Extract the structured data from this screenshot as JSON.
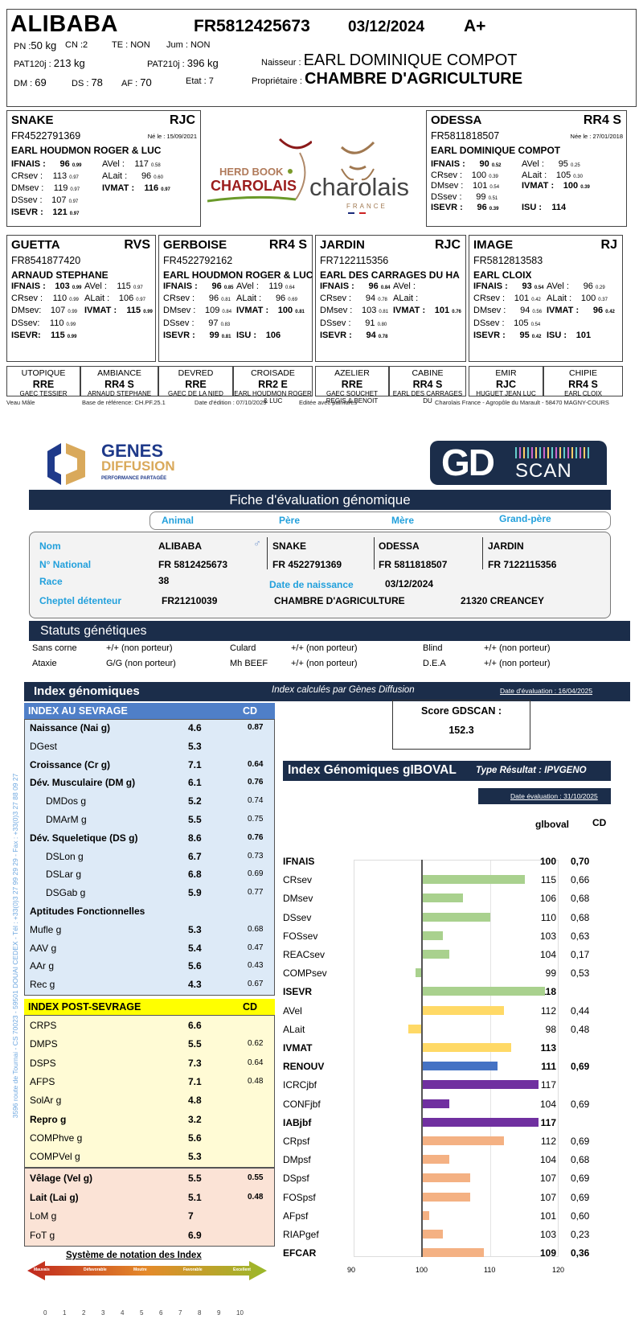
{
  "header": {
    "name": "ALIBABA",
    "national_id": "FR5812425673",
    "birth_date": "03/12/2024",
    "grade": "A+",
    "pn_label": "PN :",
    "pn_value": "50 kg",
    "cn_label": "CN :",
    "cn_value": "2",
    "te_label": "TE : ",
    "te_value": "NON",
    "jum_label": "Jum : ",
    "jum_value": "NON",
    "pat120_label": "PAT120j : ",
    "pat120_value": "213 kg",
    "pat210_label": "PAT210j : ",
    "pat210_value": "396 kg",
    "dm_label": "DM : ",
    "dm_value": "69",
    "ds_label": "DS : ",
    "ds_value": "78",
    "af_label": "AF : ",
    "af_value": "70",
    "etat_label": "Etat : ",
    "etat_value": "7",
    "naisseur_label": "Naisseur : ",
    "naisseur_value": "EARL DOMINIQUE COMPOT",
    "proprietaire_label": "Propriétaire : ",
    "proprietaire_value": "CHAMBRE D'AGRICULTURE"
  },
  "parents": {
    "father": {
      "name": "SNAKE",
      "code": "RJC",
      "id": "FR4522791369",
      "born": "Né le : 15/09/2021",
      "owner": "EARL HOUDMON ROGER & LUC",
      "left": [
        {
          "label": "IFNAIS :",
          "value": "96",
          "cd": "0.99",
          "bold": true
        },
        {
          "label": "CRsev :",
          "value": "113",
          "cd": "0.97"
        },
        {
          "label": "DMsev :",
          "value": "119",
          "cd": "0.97"
        },
        {
          "label": "DSsev :",
          "value": "107",
          "cd": "0.97"
        },
        {
          "label": "ISEVR :",
          "value": "121",
          "cd": "0.97",
          "bold": true
        }
      ],
      "right": [
        {
          "label": "AVel :",
          "value": "117",
          "cd": "0.58"
        },
        {
          "label": "ALait :",
          "value": "96",
          "cd": "0.60"
        },
        {
          "label": "IVMAT :",
          "value": "116",
          "cd": "0.97",
          "bold": true
        }
      ]
    },
    "mother": {
      "name": "ODESSA",
      "code": "RR4 S",
      "id": "FR5811818507",
      "born": "Née le : 27/01/2018",
      "owner": "EARL DOMINIQUE COMPOT",
      "left": [
        {
          "label": "IFNAIS :",
          "value": "90",
          "cd": "0.52",
          "bold": true
        },
        {
          "label": "CRsev :",
          "value": "100",
          "cd": "0.39"
        },
        {
          "label": "DMsev :",
          "value": "101",
          "cd": "0.54"
        },
        {
          "label": "DSsev :",
          "value": "99",
          "cd": "0.51"
        },
        {
          "label": "ISEVR :",
          "value": "96",
          "cd": "0.39",
          "bold": true
        }
      ],
      "right": [
        {
          "label": "AVel :",
          "value": "95",
          "cd": "0.25"
        },
        {
          "label": "ALait :",
          "value": "105",
          "cd": "0.30"
        },
        {
          "label": "IVMAT :",
          "value": "100",
          "cd": "0.39",
          "bold": true
        },
        {
          "label": "",
          "value": "",
          "cd": ""
        },
        {
          "label": "ISU :",
          "value": "114",
          "cd": "",
          "bold": true
        }
      ]
    }
  },
  "grandparents": [
    {
      "name": "GUETTA",
      "code": "RVS",
      "id": "FR8541877420",
      "owner": "ARNAUD STEPHANE",
      "left": [
        {
          "label": "IFNAIS :",
          "value": "103",
          "cd": "0.99",
          "bold": true
        },
        {
          "label": "CRsev :",
          "value": "110",
          "cd": "0.99"
        },
        {
          "label": "DMsev:",
          "value": "107",
          "cd": "0.99"
        },
        {
          "label": "DSsev:",
          "value": "110",
          "cd": "0.99"
        },
        {
          "label": "ISEVR:",
          "value": "115",
          "cd": "0.99",
          "bold": true
        }
      ],
      "right": [
        {
          "label": "AVel :",
          "value": "115",
          "cd": "0.97"
        },
        {
          "label": "ALait :",
          "value": "106",
          "cd": "0.97"
        },
        {
          "label": "IVMAT :",
          "value": "115",
          "cd": "0.99",
          "bold": true
        }
      ]
    },
    {
      "name": "GERBOISE",
      "code": "RR4 S",
      "id": "FR4522792162",
      "owner": "EARL HOUDMON ROGER & LUC",
      "left": [
        {
          "label": "IFNAIS :",
          "value": "96",
          "cd": "0.85",
          "bold": true
        },
        {
          "label": "CRsev :",
          "value": "96",
          "cd": "0.81"
        },
        {
          "label": "DMsev :",
          "value": "109",
          "cd": "0.84"
        },
        {
          "label": "DSsev :",
          "value": "97",
          "cd": "0.83"
        },
        {
          "label": "ISEVR :",
          "value": "99",
          "cd": "0.81",
          "bold": true
        }
      ],
      "right": [
        {
          "label": "AVel :",
          "value": "119",
          "cd": "0.64"
        },
        {
          "label": "ALait :",
          "value": "96",
          "cd": "0.69"
        },
        {
          "label": "IVMAT :",
          "value": "100",
          "cd": "0.81",
          "bold": true
        },
        {
          "label": "",
          "value": "",
          "cd": ""
        },
        {
          "label": "ISU :",
          "value": "106",
          "cd": "",
          "bold": true
        }
      ]
    },
    {
      "name": "JARDIN",
      "code": "RJC",
      "id": "FR7122115356",
      "owner": "EARL DES CARRAGES DU HA",
      "left": [
        {
          "label": "IFNAIS :",
          "value": "96",
          "cd": "0.84",
          "bold": true
        },
        {
          "label": "CRsev :",
          "value": "94",
          "cd": "0.78"
        },
        {
          "label": "DMsev :",
          "value": "103",
          "cd": "0.81"
        },
        {
          "label": "DSsev :",
          "value": "91",
          "cd": "0.80"
        },
        {
          "label": "ISEVR :",
          "value": "94",
          "cd": "0.78",
          "bold": true
        }
      ],
      "right": [
        {
          "label": "AVel :",
          "value": "",
          "cd": ""
        },
        {
          "label": "ALait :",
          "value": "",
          "cd": ""
        },
        {
          "label": "IVMAT :",
          "value": "101",
          "cd": "0.76",
          "bold": true
        }
      ]
    },
    {
      "name": "IMAGE",
      "code": "RJ",
      "id": "FR5812813583",
      "owner": "EARL CLOIX",
      "left": [
        {
          "label": "IFNAIS :",
          "value": "93",
          "cd": "0.54",
          "bold": true
        },
        {
          "label": "CRsev :",
          "value": "101",
          "cd": "0.42"
        },
        {
          "label": "DMsev :",
          "value": "94",
          "cd": "0.56"
        },
        {
          "label": "DSsev :",
          "value": "105",
          "cd": "0.54"
        },
        {
          "label": "ISEVR :",
          "value": "95",
          "cd": "0.42",
          "bold": true
        }
      ],
      "right": [
        {
          "label": "AVel :",
          "value": "96",
          "cd": "0.29"
        },
        {
          "label": "ALait :",
          "value": "100",
          "cd": "0.37"
        },
        {
          "label": "IVMAT :",
          "value": "96",
          "cd": "0.42",
          "bold": true
        },
        {
          "label": "",
          "value": "",
          "cd": ""
        },
        {
          "label": "ISU :",
          "value": "101",
          "cd": "",
          "bold": true
        }
      ]
    }
  ],
  "great_grandparents": [
    {
      "name": "UTOPIQUE",
      "code": "RRE",
      "owner": "GAEC TESSIER"
    },
    {
      "name": "AMBIANCE",
      "code": "RR4 S",
      "owner": "ARNAUD STEPHANE"
    },
    {
      "name": "DEVRED",
      "code": "RRE",
      "owner": "GAEC DE LA NIED"
    },
    {
      "name": "CROISADE",
      "code": "RR2 E",
      "owner": "EARL HOUDMON ROGER & LUC"
    },
    {
      "name": "AZELIER",
      "code": "RRE",
      "owner": "GAEC SOUCHET REGIS & BENOIT"
    },
    {
      "name": "CABINE",
      "code": "RR4 S",
      "owner": "EARL DES CARRAGES DU"
    },
    {
      "name": "EMIR",
      "code": "RJC",
      "owner": "HUGUET JEAN LUC"
    },
    {
      "name": "CHIPIE",
      "code": "RR4 S",
      "owner": "EARL CLOIX"
    }
  ],
  "footer": {
    "sex": "Veau Mâle",
    "base": "Base de référence: CH.PF.25.1",
    "edition": "Date d'édition : 07/10/2025",
    "palmares": "Editée avec palmarès",
    "address": "Charolais France - Agropôle du Marault - 58470 MAGNY-COURS"
  },
  "logos": {
    "herdbook_top": "HERD BOOK",
    "herdbook_bottom": "CHAROLAIS",
    "charolais": "charolais",
    "charolais_france": "FRANCE",
    "genes_1": "GENES",
    "genes_2": "DIFFUSION",
    "genes_3": "PERFORMANCE PARTAGÉE",
    "gd_main": "GD",
    "gd_scan": "SCAN"
  },
  "fiche": {
    "title": "Fiche d'évaluation génomique",
    "columns": [
      "Animal",
      "Père",
      "Mère",
      "Grand-père"
    ],
    "nom_label": "Nom",
    "national_label": "N° National",
    "race_label": "Race",
    "cheptel_label": "Cheptel détenteur",
    "names": [
      "ALIBABA",
      "SNAKE",
      "ODESSA",
      "JARDIN"
    ],
    "nationals": [
      "FR 5812425673",
      "FR 4522791369",
      "FR 5811818507",
      "FR 7122115356"
    ],
    "race": "38",
    "birth_label": "Date de naissance",
    "birth_value": "03/12/2024",
    "cheptel_id": "FR21210039",
    "cheptel_name": "CHAMBRE D'AGRICULTURE",
    "cheptel_city": "21320 CREANCEY"
  },
  "statuts": {
    "title": "Statuts génétiques",
    "items": [
      {
        "label": "Sans corne",
        "value": "+/+ (non porteur)"
      },
      {
        "label": "Culard",
        "value": "+/+ (non porteur)"
      },
      {
        "label": "Blind",
        "value": "+/+ (non porteur)"
      },
      {
        "label": "Ataxie",
        "value": "G/G (non porteur)"
      },
      {
        "label": "Mh BEEF",
        "value": "+/+ (non porteur)"
      },
      {
        "label": "D.E.A",
        "value": "+/+ (non porteur)"
      }
    ]
  },
  "index_genomiques": {
    "title": "Index génomiques",
    "subtitle": "Index calculés par Gènes Diffusion",
    "date": "Date d'évaluation : 16/04/2025",
    "sevrage_header": "INDEX AU SEVRAGE",
    "cd_header": "CD",
    "sevrage": [
      {
        "label": "Naissance (Nai g)",
        "value": "4.6",
        "cd": "0.87",
        "bold": true
      },
      {
        "label": "DGest",
        "value": "5.3",
        "cd": ""
      },
      {
        "label": "Croissance (Cr g)",
        "value": "7.1",
        "cd": "0.64",
        "bold": true
      },
      {
        "label": "Dév. Musculaire (DM g)",
        "value": "6.1",
        "cd": "0.76",
        "bold": true
      },
      {
        "label": "DMDos g",
        "value": "5.2",
        "cd": "0.74",
        "indent": true
      },
      {
        "label": "DMArM g",
        "value": "5.5",
        "cd": "0.75",
        "indent": true
      },
      {
        "label": "Dév. Squeletique (DS g)",
        "value": "8.6",
        "cd": "0.76",
        "bold": true
      },
      {
        "label": "DSLon g",
        "value": "6.7",
        "cd": "0.73",
        "indent": true
      },
      {
        "label": "DSLar g",
        "value": "6.8",
        "cd": "0.69",
        "indent": true
      },
      {
        "label": "DSGab g",
        "value": "5.9",
        "cd": "0.77",
        "indent": true
      },
      {
        "label": "Aptitudes Fonctionnelles",
        "value": "",
        "cd": "",
        "bold": true
      },
      {
        "label": "Mufle g",
        "value": "5.3",
        "cd": "0.68"
      },
      {
        "label": "AAV g",
        "value": "5.4",
        "cd": "0.47"
      },
      {
        "label": "AAr g",
        "value": "5.6",
        "cd": "0.43"
      },
      {
        "label": "Rec g",
        "value": "4.3",
        "cd": "0.67"
      }
    ],
    "post_header": "INDEX POST-SEVRAGE",
    "post": [
      {
        "label": "CRPS",
        "value": "6.6",
        "cd": ""
      },
      {
        "label": "DMPS",
        "value": "5.5",
        "cd": "0.62"
      },
      {
        "label": "DSPS",
        "value": "7.3",
        "cd": "0.64"
      },
      {
        "label": "AFPS",
        "value": "7.1",
        "cd": "0.48"
      },
      {
        "label": "SolAr g",
        "value": "4.8",
        "cd": ""
      },
      {
        "label": "Repro g",
        "value": "3.2",
        "cd": "",
        "bold": true
      },
      {
        "label": "COMPhve g",
        "value": "5.6",
        "cd": ""
      },
      {
        "label": "COMPVel g",
        "value": "5.3",
        "cd": ""
      }
    ],
    "maternal": [
      {
        "label": "Vêlage (Vel g)",
        "value": "5.5",
        "cd": "0.55",
        "bold": true
      },
      {
        "label": "Lait (Lai g)",
        "value": "5.1",
        "cd": "0.48",
        "bold": true
      },
      {
        "label": "LoM g",
        "value": "7",
        "cd": ""
      },
      {
        "label": "FoT g",
        "value": "6.9",
        "cd": ""
      }
    ],
    "notation_title": "Système de notation des Index",
    "notation_labels": [
      "Mauvais",
      "Défavorable",
      "Moutre",
      "Favorable",
      "Excellent"
    ],
    "notation_scale": [
      "0",
      "1",
      "2",
      "3",
      "4",
      "5",
      "6",
      "7",
      "8",
      "9",
      "10"
    ]
  },
  "score": {
    "label": "Score GDSCAN :",
    "value": "152.3"
  },
  "side_address": "3596 route de Tournai - CS 70023 - 59501 DOUAI CEDEX - Tél : +33(0)3 27 99 29 29 - Fax : +33(0)3 27 88 09 27",
  "chart_data": {
    "type": "bar",
    "title": "Index Génomiques gIBOVAL",
    "subtitle": "Type Résultat : IPVGENO",
    "date": "Date évaluation : 31/10/2025",
    "value_header": "glboval",
    "cd_header": "CD",
    "xlim": [
      90,
      120
    ],
    "baseline": 100,
    "x_ticks": [
      "90",
      "100",
      "110",
      "120"
    ],
    "categories": [
      "IFNAIS",
      "CRsev",
      "DMsev",
      "DSsev",
      "FOSsev",
      "REACsev",
      "COMPsev",
      "ISEVR",
      "AVel",
      "ALait",
      "IVMAT",
      "RENOUV",
      "ICRCjbf",
      "CONFjbf",
      "IABjbf",
      "CRpsf",
      "DMpsf",
      "DSpsf",
      "FOSpsf",
      "AFpsf",
      "RIAPgef",
      "EFCAR"
    ],
    "values": [
      100,
      115,
      106,
      110,
      103,
      104,
      99,
      118,
      112,
      98,
      113,
      111,
      117,
      104,
      117,
      112,
      104,
      107,
      107,
      101,
      103,
      109
    ],
    "cd": [
      "0,70",
      "0,66",
      "0,68",
      "0,68",
      "0,63",
      "0,17",
      "0,53",
      "",
      "0,44",
      "0,48",
      "",
      "0,69",
      "",
      "0,69",
      "",
      "0,69",
      "0,68",
      "0,69",
      "0,69",
      "0,60",
      "0,23",
      "0,36"
    ],
    "bold": [
      true,
      false,
      false,
      false,
      false,
      false,
      false,
      true,
      false,
      false,
      true,
      true,
      false,
      false,
      true,
      false,
      false,
      false,
      false,
      false,
      false,
      true
    ],
    "colors": [
      "#a9d18e",
      "#a9d18e",
      "#a9d18e",
      "#a9d18e",
      "#a9d18e",
      "#a9d18e",
      "#a9d18e",
      "#a9d18e",
      "#ffd966",
      "#ffd966",
      "#ffd966",
      "#4472c4",
      "#7030a0",
      "#7030a0",
      "#7030a0",
      "#f4b183",
      "#f4b183",
      "#f4b183",
      "#f4b183",
      "#f4b183",
      "#f4b183",
      "#f4b183"
    ]
  }
}
